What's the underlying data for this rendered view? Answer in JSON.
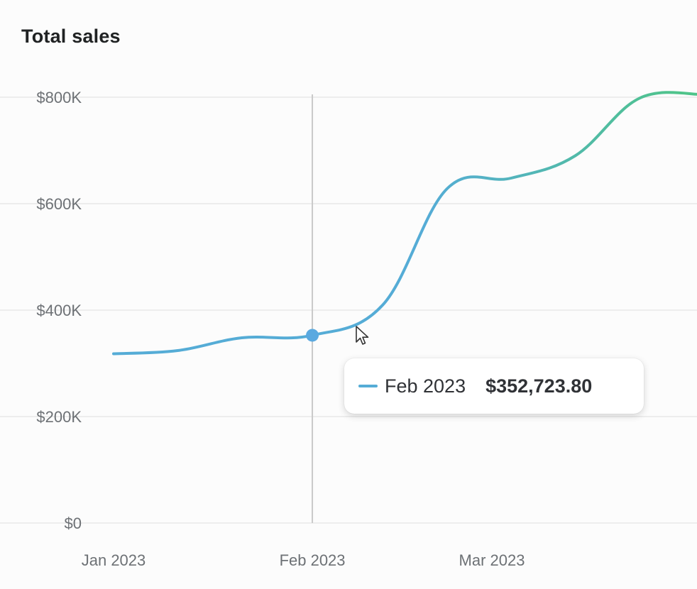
{
  "title": "Total sales",
  "chart_data": {
    "type": "line",
    "title": "Total sales",
    "xlabel": "",
    "ylabel": "",
    "ylim": [
      0,
      800000
    ],
    "y_ticks": [
      {
        "value": 0,
        "label": "$0"
      },
      {
        "value": 200000,
        "label": "$200K"
      },
      {
        "value": 400000,
        "label": "$400K"
      },
      {
        "value": 600000,
        "label": "$600K"
      },
      {
        "value": 800000,
        "label": "$800K"
      }
    ],
    "x_ticks": [
      {
        "day": 0,
        "label": "Jan 2023"
      },
      {
        "day": 31,
        "label": "Feb 2023"
      },
      {
        "day": 59,
        "label": "Mar 2023"
      }
    ],
    "grid": true,
    "legend": "none",
    "series": [
      {
        "points": [
          {
            "day": 0,
            "value": 318000
          },
          {
            "day": 10,
            "value": 324000
          },
          {
            "day": 20,
            "value": 348000
          },
          {
            "day": 31,
            "value": 352723.8
          },
          {
            "day": 42,
            "value": 410000
          },
          {
            "day": 52,
            "value": 628000
          },
          {
            "day": 62,
            "value": 648000
          },
          {
            "day": 72,
            "value": 690000
          },
          {
            "day": 82,
            "value": 798000
          },
          {
            "day": 92,
            "value": 805000
          }
        ],
        "gradient_colors": [
          "#55acd6",
          "#4fc48a"
        ]
      }
    ],
    "hover": {
      "day": 31,
      "label": "Feb 2023",
      "value": 352723.8,
      "value_label": "$352,723.80"
    }
  },
  "tooltip": {
    "label": "Feb 2023",
    "value": "$352,723.80"
  },
  "colors": {
    "line_start": "#55acd6",
    "line_end": "#4fc48a",
    "grid": "#e8e8e8",
    "crosshair": "#c9c9c9",
    "hover_point": "#5aa9e0"
  },
  "icons": {
    "cursor": "arrow-cursor-icon"
  }
}
